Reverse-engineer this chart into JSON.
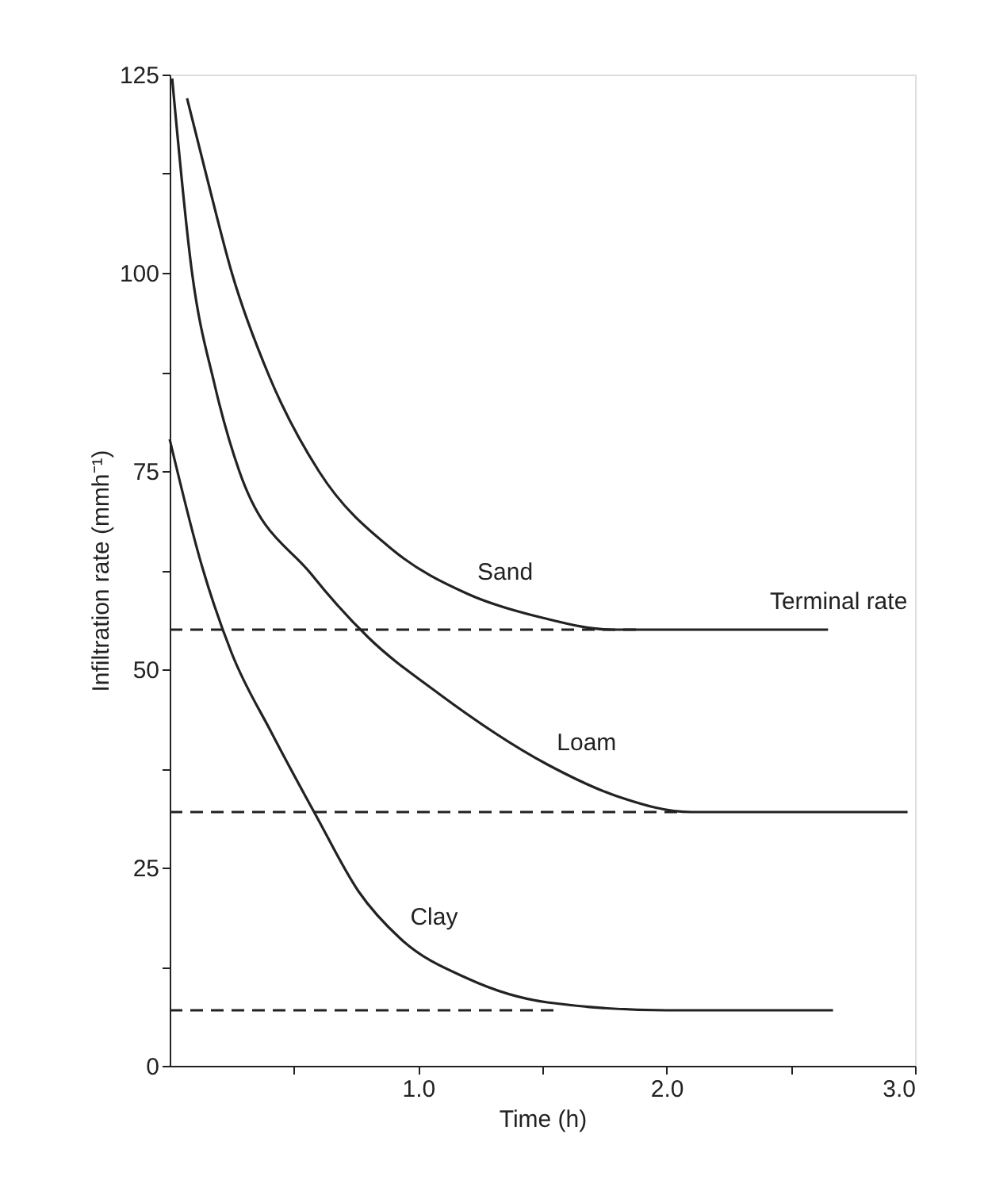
{
  "chart_data": {
    "type": "line",
    "xlabel": "Time (h)",
    "ylabel": "Infiltration rate (mmh⁻¹)",
    "xlim": [
      0,
      3.0
    ],
    "ylim": [
      0,
      125
    ],
    "xticks": [
      {
        "value": 0.5,
        "label": null
      },
      {
        "value": 1.0,
        "label": "1.0"
      },
      {
        "value": 1.5,
        "label": null
      },
      {
        "value": 2.0,
        "label": "2.0"
      },
      {
        "value": 2.5,
        "label": null
      },
      {
        "value": 3.0,
        "label": "3.0"
      }
    ],
    "yticks": [
      0,
      {
        "value": 12.5,
        "label": null
      },
      25,
      {
        "value": 37.5,
        "label": null
      },
      50,
      {
        "value": 62.5,
        "label": null
      },
      75,
      {
        "value": 87.5,
        "label": null
      },
      100,
      {
        "value": 112.5,
        "label": null
      },
      125
    ],
    "grid": false,
    "marker": "none",
    "series": [
      {
        "name": "Sand",
        "color": "#222222",
        "line_style": "solid",
        "x": [
          0.07,
          0.15,
          0.25,
          0.4,
          0.6,
          0.9,
          1.2,
          1.5,
          1.78,
          2.2,
          2.65
        ],
        "values": [
          122,
          112,
          100,
          87,
          75,
          65,
          59.5,
          56.5,
          55,
          55,
          55
        ]
      },
      {
        "name": "Loam",
        "color": "#222222",
        "line_style": "solid",
        "x": [
          0.01,
          0.09,
          0.18,
          0.28,
          0.57,
          0.8,
          1.08,
          1.52,
          1.8,
          2.1,
          2.5,
          2.97
        ],
        "values": [
          124.5,
          100,
          86,
          75,
          62,
          54,
          47,
          38,
          34,
          32,
          32,
          32
        ]
      },
      {
        "name": "Clay",
        "color": "#222222",
        "line_style": "solid",
        "x": [
          0.0,
          0.13,
          0.25,
          0.41,
          0.59,
          0.76,
          0.93,
          1.2,
          1.52,
          2.0,
          2.67
        ],
        "values": [
          79,
          63,
          52,
          42,
          31.5,
          22,
          16,
          11,
          8,
          7,
          7
        ]
      },
      {
        "color": "#222222",
        "line_style": "dashed",
        "x": [
          0,
          1.9
        ],
        "values": [
          55,
          55
        ]
      },
      {
        "color": "#222222",
        "line_style": "dashed",
        "x": [
          0,
          2.06
        ],
        "values": [
          32,
          32
        ]
      },
      {
        "color": "#222222",
        "line_style": "dashed",
        "x": [
          0,
          1.55
        ],
        "values": [
          7,
          7
        ]
      }
    ],
    "annotations": [
      "Terminal rate"
    ]
  }
}
